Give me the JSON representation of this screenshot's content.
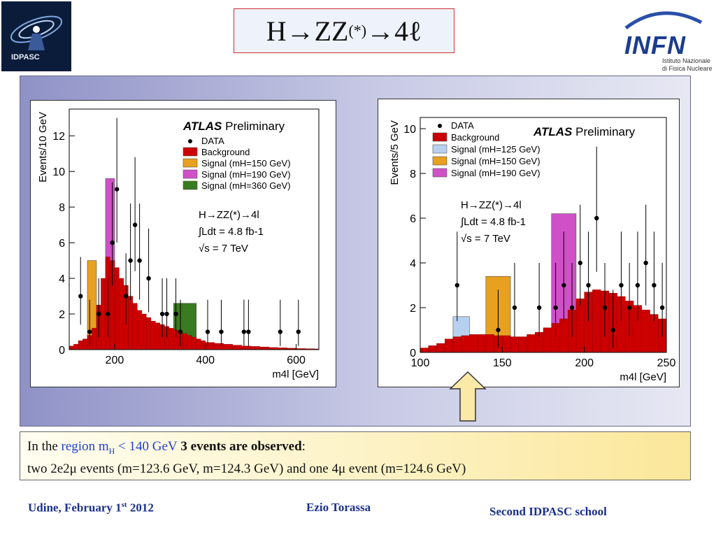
{
  "header": {
    "title_main": "H→ZZ",
    "title_sup": "(*)",
    "title_end": "→4ℓ",
    "logo_left_text": "IDPASC",
    "logo_right_text": "INFN",
    "logo_right_sub_1": "Istituto Nazionale",
    "logo_right_sub_2": "di Fisica Nucleare"
  },
  "colors": {
    "background": "#cc0000",
    "signal_125": "#b8d0f0",
    "signal_150": "#e8a020",
    "signal_190": "#d050c8",
    "signal_360": "#3a7a20",
    "data": "#000000"
  },
  "chart_data": [
    {
      "type": "bar",
      "xlabel": "m4l [GeV]",
      "ylabel": "Events/10 GeV",
      "xlim": [
        100,
        650
      ],
      "ylim": [
        0,
        13.5
      ],
      "xticks": [
        200,
        400,
        600
      ],
      "yticks": [
        0,
        2,
        4,
        6,
        8,
        10,
        12
      ],
      "atlas_bold": "ATLAS",
      "atlas_rest": "Preliminary",
      "legend": [
        "DATA",
        "Background",
        "Signal (mH=150 GeV)",
        "Signal (mH=190 GeV)",
        "Signal (mH=360 GeV)"
      ],
      "annotation": [
        "H→ZZ(*)→4l",
        "∫Ldt = 4.8 fb-1",
        "√s = 7 TeV"
      ],
      "background": {
        "bin_edges": [
          100,
          110,
          120,
          130,
          140,
          150,
          160,
          170,
          180,
          190,
          200,
          210,
          220,
          230,
          240,
          250,
          260,
          270,
          280,
          290,
          300,
          310,
          320,
          330,
          340,
          350,
          360,
          370,
          380,
          390,
          400,
          420,
          440,
          460,
          480,
          500,
          520,
          540,
          560,
          580,
          600,
          620,
          640,
          650
        ],
        "values": [
          0.2,
          0.3,
          0.5,
          0.6,
          0.8,
          1.2,
          2.5,
          4.0,
          5.2,
          5.0,
          4.6,
          4.0,
          3.6,
          3.0,
          2.6,
          2.2,
          2.0,
          1.8,
          1.6,
          1.5,
          1.4,
          1.3,
          1.2,
          1.1,
          1.0,
          0.9,
          0.8,
          0.7,
          0.6,
          0.5,
          0.4,
          0.35,
          0.3,
          0.25,
          0.2,
          0.18,
          0.15,
          0.12,
          0.1,
          0.08,
          0.06,
          0.05,
          0.04
        ]
      },
      "signals": [
        {
          "name": "Signal (mH=150 GeV)",
          "x_range": [
            140,
            160
          ],
          "top": 5.0
        },
        {
          "name": "Signal (mH=190 GeV)",
          "x_range": [
            180,
            200
          ],
          "top": 9.6
        },
        {
          "name": "Signal (mH=360 GeV)",
          "x_range": [
            330,
            380
          ],
          "top": 2.6
        }
      ],
      "data_points": {
        "x": [
          125,
          145,
          165,
          185,
          195,
          205,
          225,
          235,
          245,
          255,
          275,
          305,
          315,
          335,
          345,
          405,
          435,
          485,
          495,
          565,
          605
        ],
        "y": [
          3,
          1,
          2,
          2,
          6,
          9,
          3,
          5,
          7,
          5,
          4,
          2,
          2,
          2,
          1,
          1,
          1,
          1,
          1,
          1,
          1
        ],
        "err_up": [
          2.2,
          1.8,
          2.0,
          2.0,
          3.4,
          4.0,
          2.4,
          3.2,
          3.8,
          3.2,
          2.8,
          2.0,
          2.0,
          2.0,
          1.8,
          1.8,
          1.8,
          1.8,
          1.8,
          1.8,
          1.8
        ],
        "err_down": [
          1.6,
          0.8,
          1.3,
          1.3,
          2.4,
          3.0,
          1.6,
          2.2,
          2.6,
          2.2,
          1.9,
          1.3,
          1.3,
          1.3,
          0.8,
          0.8,
          0.8,
          0.8,
          0.8,
          0.8,
          0.8
        ]
      }
    },
    {
      "type": "bar",
      "xlabel": "m4l [GeV]",
      "ylabel": "Events/5 GeV",
      "xlim": [
        100,
        250
      ],
      "ylim": [
        0,
        10.5
      ],
      "xticks": [
        100,
        150,
        200,
        250
      ],
      "yticks": [
        0,
        2,
        4,
        6,
        8,
        10
      ],
      "atlas_bold": "ATLAS",
      "atlas_rest": "Preliminary",
      "legend": [
        "DATA",
        "Background",
        "Signal (mH=125 GeV)",
        "Signal (mH=150 GeV)",
        "Signal (mH=190 GeV)"
      ],
      "annotation": [
        "H→ZZ(*)→4l",
        "∫Ldt = 4.8 fb-1",
        "√s = 7 TeV"
      ],
      "background": {
        "bin_edges": [
          100,
          105,
          110,
          115,
          120,
          125,
          130,
          135,
          140,
          145,
          150,
          155,
          160,
          165,
          170,
          175,
          180,
          185,
          190,
          195,
          200,
          205,
          210,
          215,
          220,
          225,
          230,
          235,
          240,
          245,
          250
        ],
        "values": [
          0.2,
          0.3,
          0.4,
          0.6,
          0.7,
          0.75,
          0.8,
          0.8,
          0.8,
          0.75,
          0.75,
          0.7,
          0.7,
          0.8,
          0.9,
          1.1,
          1.3,
          1.5,
          1.9,
          2.4,
          2.7,
          2.8,
          2.75,
          2.65,
          2.5,
          2.3,
          2.1,
          1.9,
          1.7,
          1.5
        ]
      },
      "signals": [
        {
          "name": "Signal (mH=125 GeV)",
          "x_range": [
            120,
            130
          ],
          "top": 1.6
        },
        {
          "name": "Signal (mH=150 GeV)",
          "x_range": [
            140,
            155
          ],
          "top": 3.4
        },
        {
          "name": "Signal (mH=190 GeV)",
          "x_range": [
            180,
            195
          ],
          "top": 6.2
        }
      ],
      "data_points": {
        "x": [
          122.5,
          147.5,
          157.5,
          172.5,
          182.5,
          187.5,
          192.5,
          197.5,
          202.5,
          207.5,
          212.5,
          217.5,
          222.5,
          227.5,
          232.5,
          237.5,
          242.5,
          247.5
        ],
        "y": [
          3,
          1,
          2,
          2,
          2,
          3,
          2,
          4,
          3,
          6,
          2,
          1,
          3,
          2,
          3,
          4,
          3,
          2
        ],
        "err_up": [
          2.4,
          1.8,
          2.0,
          2.0,
          2.0,
          2.4,
          2.0,
          2.6,
          2.4,
          3.2,
          2.0,
          1.8,
          2.4,
          2.0,
          2.4,
          2.6,
          2.4,
          2.0
        ],
        "err_down": [
          1.6,
          0.8,
          1.3,
          1.3,
          1.3,
          1.6,
          1.3,
          1.9,
          1.6,
          2.4,
          1.3,
          0.8,
          1.6,
          1.3,
          1.6,
          1.9,
          1.6,
          1.3
        ]
      }
    }
  ],
  "info": {
    "line1_pre": "In the ",
    "line1_region": "region m",
    "line1_sub": "H",
    "line1_cut": " < 140 GeV",
    "line1_bold": " 3 events are observed",
    "line1_colon": ":",
    "line2": "two 2e2μ events (m=123.6 GeV, m=124.3 GeV) and one 4μ event (m=124.6 GeV)"
  },
  "footer": {
    "left_pre": "Udine, February 1",
    "left_sup": "st",
    "left_post": "  2012",
    "center": "Ezio Torassa",
    "right": "Second  IDPASC school"
  }
}
